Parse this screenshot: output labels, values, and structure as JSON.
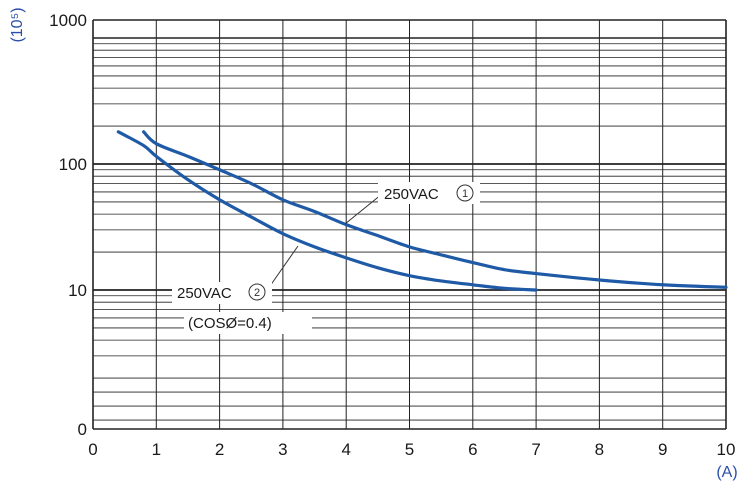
{
  "chart_data": {
    "type": "line",
    "x_unit": "(A)",
    "y_unit": "(10⁵)",
    "xlim": [
      0,
      10
    ],
    "x_ticks": [
      0,
      1,
      2,
      3,
      4,
      5,
      6,
      7,
      8,
      9,
      10
    ],
    "y_tick_labels": [
      "0",
      "10",
      "100",
      "1000"
    ],
    "y_scale": "log-like (0 is the axis bottom)",
    "grid": true,
    "colors": {
      "curve": "#1f5aa6",
      "unit": "#2b4fa8",
      "grid": "#222222"
    },
    "series": [
      {
        "label_text": "250VAC",
        "label_number": "1",
        "x": [
          0.8,
          1,
          1.5,
          2,
          2.5,
          3,
          3.5,
          4,
          4.5,
          5,
          5.5,
          6,
          6.5,
          7,
          8,
          9,
          10
        ],
        "y": [
          180,
          145,
          115,
          90,
          70,
          52,
          42,
          33,
          27,
          22,
          19,
          16.5,
          14.5,
          13.5,
          12,
          11,
          10.5
        ]
      },
      {
        "label_text": "250VAC",
        "label_number": "2",
        "label_extra": "(COSØ=0.4)",
        "x": [
          0.4,
          0.8,
          1,
          1.5,
          2,
          2.5,
          3,
          3.5,
          4,
          4.5,
          5,
          5.5,
          6,
          6.5,
          7
        ],
        "y": [
          180,
          140,
          115,
          75,
          52,
          38,
          28,
          22,
          18,
          15,
          13,
          11.8,
          11,
          10.3,
          10
        ]
      }
    ]
  }
}
